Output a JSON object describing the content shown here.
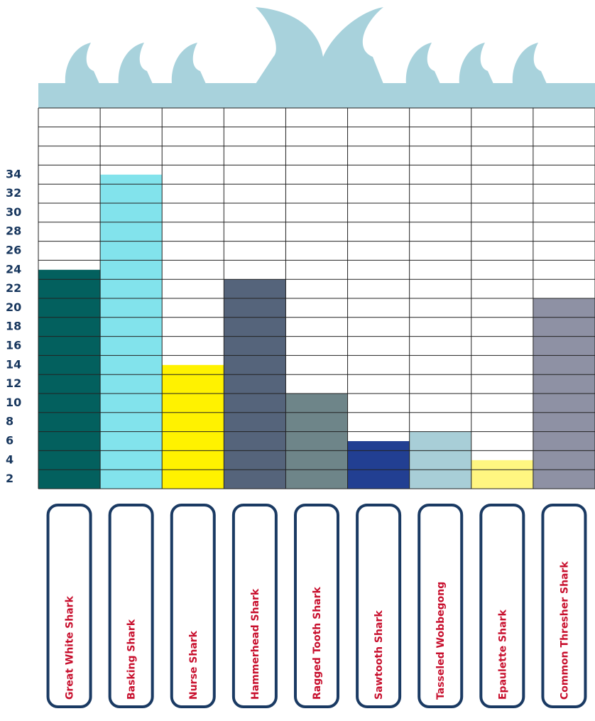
{
  "chart_data": {
    "type": "bar",
    "title": "",
    "xlabel": "",
    "ylabel": "",
    "ylim": [
      0,
      40
    ],
    "y_ticks": [
      "2",
      "4",
      "6",
      "8",
      "10",
      "12",
      "14",
      "16",
      "18",
      "20",
      "22",
      "24",
      "26",
      "28",
      "30",
      "32",
      "34"
    ],
    "grid": true,
    "categories": [
      "Great White Shark",
      "Basking Shark",
      "Nurse Shark",
      "Hammerhead Shark",
      "Ragged Tooth Shark",
      "Sawtooth Shark",
      "Tasseled Wobbegong",
      "Epaulette Shark",
      "Common Thresher Shark"
    ],
    "values": [
      23,
      33,
      13,
      22,
      10,
      5,
      6,
      3,
      20
    ],
    "colors": [
      "#03605e",
      "#82e3ec",
      "#fff200",
      "#55647b",
      "#6e8589",
      "#223f92",
      "#a8ced7",
      "#fff681",
      "#8e91a4"
    ],
    "decoration": {
      "fin_color": "#a8d2dc",
      "label_border_color": "#1a3a63"
    }
  }
}
